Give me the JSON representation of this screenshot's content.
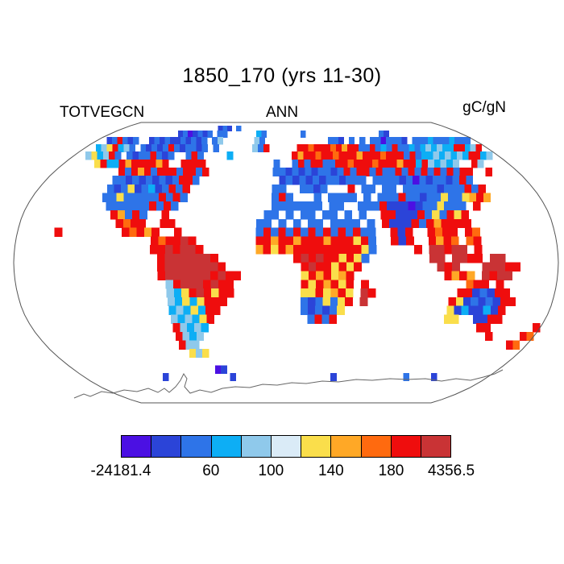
{
  "title": "1850_170 (yrs 11-30)",
  "subtitle_left": "TOTVEGCN",
  "subtitle_center": "ANN",
  "subtitle_right": "gC/gN",
  "chart_data": {
    "type": "heatmap",
    "projection": "robinson",
    "variable": "TOTVEGCN",
    "season": "ANN",
    "units": "gC/gN",
    "colorbar": {
      "colors": [
        "#4B10E3",
        "#2B44D8",
        "#2E74E8",
        "#0DAEF5",
        "#8FC9EB",
        "#DAEBF7",
        "#FADE4B",
        "#FFA826",
        "#FF6A0F",
        "#EF0D0D",
        "#C93335"
      ],
      "tick_labels": [
        "-24181.4",
        "60",
        "100",
        "140",
        "180",
        "4356.5"
      ],
      "tick_boundary_indices": [
        0,
        3,
        5,
        7,
        9,
        11
      ],
      "min": -24181.4,
      "max": 4356.5,
      "interior_levels": [
        20,
        40,
        60,
        80,
        100,
        120,
        140,
        160,
        180,
        200
      ]
    },
    "grid": {
      "lon_start": -180,
      "lat_start": 90,
      "dlon": 5,
      "dlat": 5,
      "cols": 72,
      "rows": 36,
      "codes": "0123456789A",
      "no_data": ".",
      "cells": [
        [
          "............",
          "............",
          "............",
          "............",
          "............",
          "............"
        ],
        [
          "............",
          ".........121",
          ".2..........",
          "............",
          "............",
          "............"
        ],
        [
          "............",
          "..1201212.22",
          "......32....",
          "...2........",
          ".......21...",
          "............"
        ],
        [
          "..129212..12",
          "121121212.24",
          "......42....",
          "........221.",
          "2.2.2202221.",
          "22232223222."
        ],
        [
          "..3469342.21",
          "2129212212.2",
          "......429...",
          "..9989998979",
          "922923292232",
          "34343399349."
        ],
        [
          "..463492.212",
          "29212..292..",
          "..3.........",
          ".97998998999",
          "799989992923",
          "34343439934."
        ],
        [
          ".....6933979",
          "99979..9999.",
          "..........2.",
          ".29299229989",
          "998999799394",
          "3434..94...."
        ],
        [
          "..........92",
          "979299929929",
          "..........22",
          "121212212929",
          "929229292929",
          "29299..9...."
        ],
        [
          "..........22",
          "12121212992.",
          "...........1",
          "212121221222",
          ".22221202122",
          "1292........"
        ],
        [
          "..........21",
          "2612312929..",
          "..........22",
          "..2212...9.2",
          "2.22.2222212",
          "22929......."
        ],
        [
          "..........22",
          "6222229292..",
          "..........29",
          "2...2.2222.2",
          ".22292212262",
          "26797......."
        ],
        [
          "...........2",
          "222229292...",
          "..........22",
          "22222.22..22",
          "291110122622",
          "2.9........."
        ],
        [
          "............",
          "97292..9....",
          ".........22.",
          "2.22.22.2.2.",
          ".99111926296",
          "9..........."
        ],
        [
          "............",
          ".9899..99...",
          "........22.2",
          ".2.22.2222.2",
          ".91119297999",
          "9..........."
        ],
        [
          ".....9......",
          "..98979..9..",
          "........2929",
          "292929292922",
          "..919..9899.",
          "98.........."
        ],
        [
          "............",
          "......9899A9",
          "........9979",
          "979997999692",
          "..919..9798.",
          "89.........."
        ],
        [
          "............",
          "......99A9AA",
          "9.......7969",
          "799999999962",
          ".....9.AA9AA",
          ".9.........."
        ],
        [
          "............",
          ".......9AAAA",
          "AA9.........",
          ".9A9A996962.",
          ".......AA.AA",
          "99.AA......."
        ],
        [
          "............",
          ".......9AAAA",
          "AAA9........",
          "..9A996969..",
          "........A9A.",
          "..AAA99....."
        ],
        [
          "............",
          ".......9AAAA",
          "AA9A99......",
          "..6979679...",
          ".........979",
          "7.A9AA......"
        ],
        [
          "............",
          "........49AA",
          "A9A99.......",
          "..9697969.9.",
          "............",
          "899.9......."
        ],
        [
          "............",
          "........4369",
          "A9699.......",
          "..6696796.A9",
          "...........9",
          "912199......"
        ],
        [
          "............",
          "........4363",
          "6999........",
          "..2126269.A.",
          "..........96",
          "1212199....."
        ],
        [
          "............",
          "........3436",
          "399.........",
          "..212126....",
          "..........61",
          "311319......"
        ],
        [
          "............",
          "........4343",
          "69..........",
          "...2929.....",
          "..........66",
          "..1199......"
        ],
        [
          "............",
          "........9434",
          "3...........",
          "............",
          "............",
          "...99......9"
        ],
        [
          "............",
          "........9434",
          "............",
          "............",
          "............",
          ".....9....98"
        ],
        [
          "............",
          "........944.",
          "............",
          "............",
          "............",
          ".........98."
        ],
        [
          "............",
          ".........646",
          "............",
          "............",
          "............",
          "............"
        ],
        [
          "............",
          "............",
          "............",
          "............",
          "............",
          "............"
        ],
        [
          "............",
          "............",
          "01..........",
          "............",
          "............",
          "............"
        ],
        [
          "............",
          "..1.........",
          "..1.........",
          "........1...",
          ".........2..",
          "..1........."
        ],
        [
          "............",
          "............",
          "............",
          "............",
          "............",
          "............"
        ],
        [
          "............",
          "............",
          "............",
          "............",
          "............",
          "............"
        ],
        [
          "............",
          "............",
          "............",
          "............",
          "............",
          "............"
        ],
        [
          "............",
          "............",
          "............",
          "............",
          "............",
          "............"
        ]
      ]
    }
  }
}
